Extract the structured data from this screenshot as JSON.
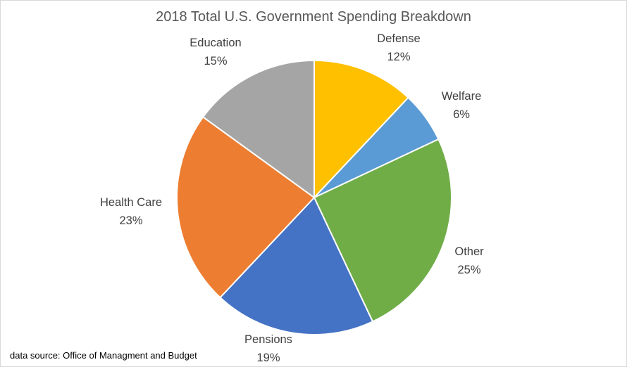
{
  "chart_data": {
    "type": "pie",
    "title": "2018 Total U.S. Government Spending Breakdown",
    "start_angle": "12 o'clock, clockwise",
    "slices": [
      {
        "label": "Defense",
        "value": 12,
        "display": "12%",
        "color": "#FFC000"
      },
      {
        "label": "Welfare",
        "value": 6,
        "display": "6%",
        "color": "#5B9BD5"
      },
      {
        "label": "Other",
        "value": 25,
        "display": "25%",
        "color": "#70AD47"
      },
      {
        "label": "Pensions",
        "value": 19,
        "display": "19%",
        "color": "#4472C4"
      },
      {
        "label": "Health Care",
        "value": 23,
        "display": "23%",
        "color": "#ED7D31"
      },
      {
        "label": "Education",
        "value": 15,
        "display": "15%",
        "color": "#A5A5A5"
      }
    ],
    "legend": "none",
    "annotation": "data source: Office of Managment and Budget"
  }
}
